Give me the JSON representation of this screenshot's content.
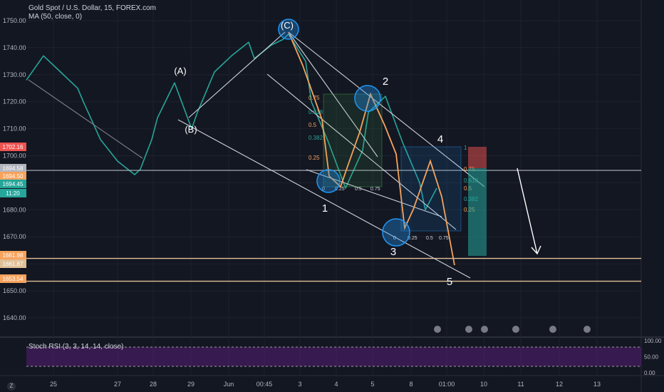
{
  "header": {
    "title": "Gold Spot / U.S. Dollar, 15, FOREX.com",
    "ma_label": "MA (50, close, 0)",
    "stoch_label": "Stoch RSI (3, 3, 14, 14, close)"
  },
  "colors": {
    "background": "#131722",
    "price_line": "#26a69a",
    "ma_line": "#2196f3",
    "support_line": "#e0c097",
    "bear_wave": "#f7a35c",
    "channel": "#d1d4dc",
    "circle": "#2196f3",
    "stoch_band": "#7b1fa2"
  },
  "chart_data": {
    "type": "line",
    "title": "Gold Spot / U.S. Dollar, 15, FOREX.com",
    "xlabel": "",
    "ylabel": "",
    "ylim": [
      1632,
      1755
    ],
    "yticks": [
      1640,
      1650,
      1660,
      1670,
      1680,
      1690,
      1700,
      1710,
      1720,
      1730,
      1740,
      1750
    ],
    "x_tick_labels": [
      "25",
      "27",
      "28",
      "29",
      "Jun",
      "00:45",
      "3",
      "4",
      "5",
      "8",
      "01:00",
      "10",
      "11",
      "12",
      "13"
    ],
    "grid": true,
    "series": [
      {
        "x": [
          0,
          0.3,
          0.6,
          0.9,
          1.0,
          1.3,
          1.6,
          1.9,
          2.0,
          2.2,
          2.3,
          2.6,
          2.9,
          3.0,
          3.3,
          3.6,
          3.9,
          4.0,
          4.3,
          4.5,
          4.6,
          4.9,
          5.0,
          5.3,
          5.6,
          5.9,
          6.0,
          6.3,
          6.6,
          6.9,
          7.0,
          7.2
        ],
        "y": [
          1728,
          1737,
          1731,
          1725,
          1720,
          1706,
          1698,
          1693,
          1695,
          1706,
          1714,
          1727,
          1710,
          1716,
          1731,
          1737,
          1742,
          1736,
          1741,
          1743,
          1745,
          1735,
          1720,
          1705,
          1688,
          1702,
          1716,
          1722,
          1705,
          1690,
          1680,
          1688
        ]
      }
    ],
    "reference_levels": {
      "horizontal_lines": [
        1694.58,
        1661.98,
        1653.54
      ]
    },
    "price_labels": [
      {
        "value": "1702.16",
        "color": "#ef5350"
      },
      {
        "value": "1694.58",
        "color": "#b2b5be"
      },
      {
        "value": "1694.50",
        "color": "#f7a35c"
      },
      {
        "value": "1694.45",
        "color": "#26a69a"
      },
      {
        "value": "11:20",
        "color": "#26a69a"
      },
      {
        "value": "1661.98",
        "color": "#f7a35c"
      },
      {
        "value": "1661.87",
        "color": "#e0c097"
      },
      {
        "value": "1653.54",
        "color": "#f7a35c"
      }
    ],
    "wave_labels": [
      "(A)",
      "(B)",
      "(C)",
      "1",
      "2",
      "3",
      "4",
      "5"
    ],
    "fib_levels": [
      "0",
      "0.25",
      "0.382",
      "0.5",
      "0.618",
      "0.75",
      "1"
    ],
    "stoch_ylim": [
      0,
      100
    ],
    "stoch_yticks": [
      "100.00",
      "50.00",
      "0.00"
    ]
  }
}
